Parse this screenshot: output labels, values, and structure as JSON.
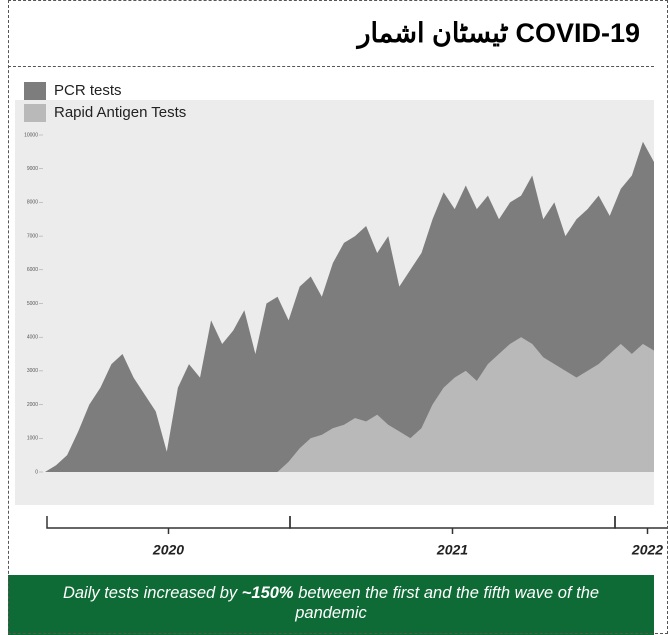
{
  "chart_data": {
    "type": "stacked_area",
    "title": "ٹیسٹان اشمار COVID-19",
    "series": [
      {
        "name": "PCR tests",
        "color": "#7d7d7d",
        "values": [
          0,
          200,
          500,
          1200,
          2000,
          2500,
          3200,
          3500,
          2800,
          2300,
          1800,
          600,
          2500,
          3200,
          2800,
          4500,
          3800,
          4200,
          4800,
          3500,
          5000,
          5200,
          4200,
          4800,
          4800,
          4100,
          4900,
          5400,
          5400,
          5800,
          4800,
          5600,
          4300,
          5000,
          5200,
          5500,
          5800,
          5000,
          5500,
          5100,
          5000,
          4000,
          4200,
          4200,
          5000,
          4100,
          4800,
          4000,
          4700,
          4800,
          5000,
          4100,
          4600,
          5300,
          6000,
          5600
        ]
      },
      {
        "name": "Rapid Antigen Tests",
        "color": "#b9b9b9",
        "values": [
          0,
          0,
          0,
          0,
          0,
          0,
          0,
          0,
          0,
          0,
          0,
          0,
          0,
          0,
          0,
          0,
          0,
          0,
          0,
          0,
          0,
          0,
          300,
          700,
          1000,
          1100,
          1300,
          1400,
          1600,
          1500,
          1700,
          1400,
          1200,
          1000,
          1300,
          2000,
          2500,
          2800,
          3000,
          2700,
          3200,
          3500,
          3800,
          4000,
          3800,
          3400,
          3200,
          3000,
          2800,
          3000,
          3200,
          3500,
          3800,
          3500,
          3800,
          3600
        ]
      }
    ],
    "ylim": [
      0,
      10000
    ],
    "yticks": [
      0,
      1000,
      2000,
      3000,
      4000,
      5000,
      6000,
      7000,
      8000,
      9000,
      10000
    ],
    "annotations": [
      "2020",
      "2021",
      "2022"
    ],
    "footer": {
      "before": "Daily tests increased by ",
      "bold": "~150%",
      "after": " between the first and the fifth wave of the pandemic"
    }
  }
}
